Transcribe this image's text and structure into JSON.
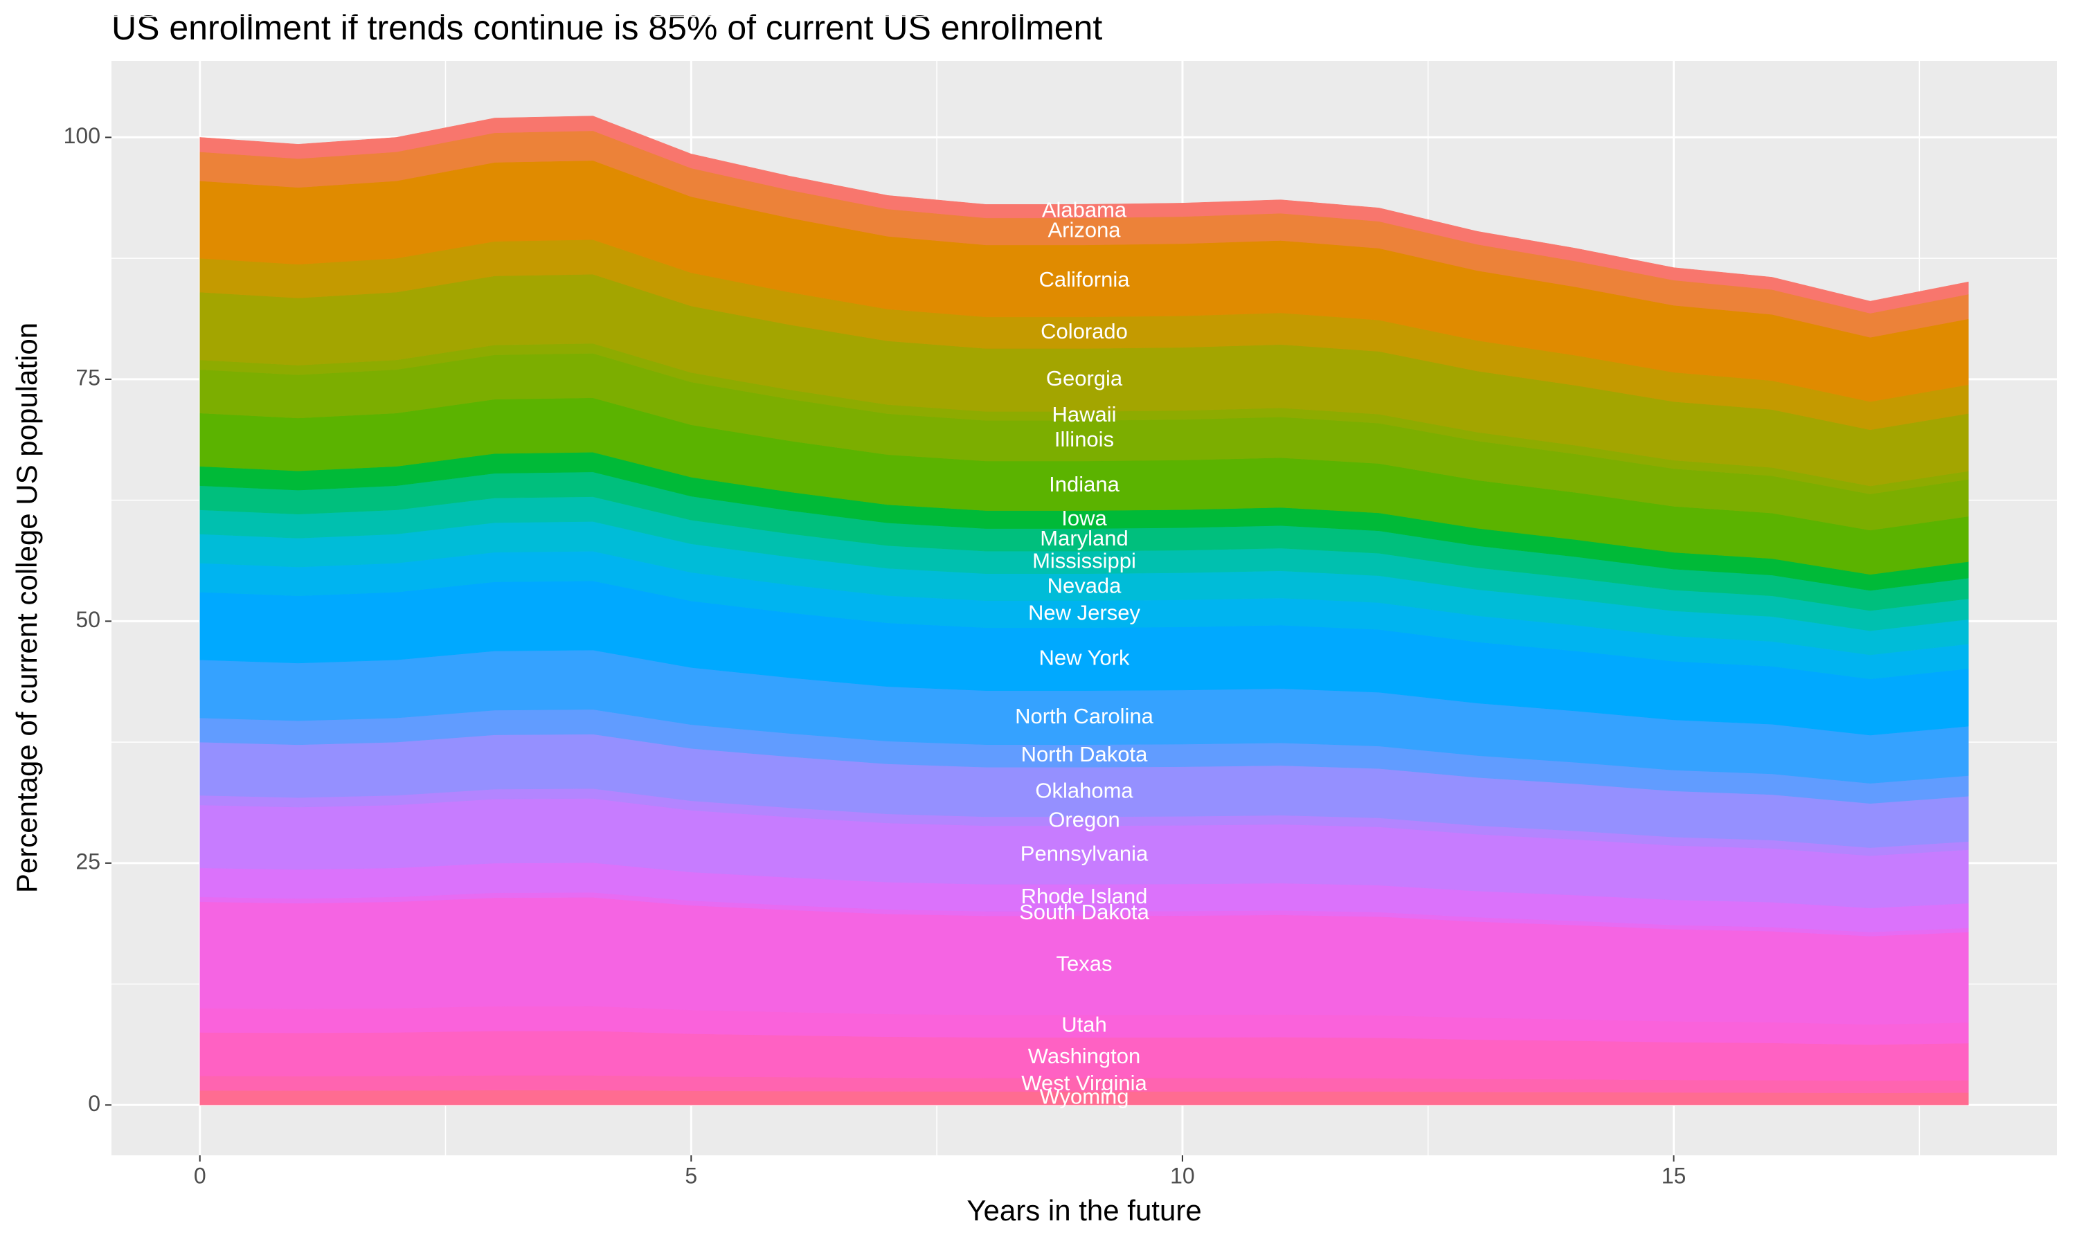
{
  "chart_data": {
    "type": "stacked-area",
    "title": "US enrollment if trends continue is 85% of current US enrollment",
    "x_label": "Years in the future",
    "y_label": "Percentage of current college US population",
    "x": [
      0,
      1,
      2,
      3,
      4,
      5,
      6,
      7,
      8,
      9,
      10,
      11,
      12,
      13,
      14,
      15,
      16,
      17,
      18
    ],
    "xlim": [
      -0.9,
      18.9
    ],
    "xticks": [
      0,
      5,
      10,
      15
    ],
    "ylim": [
      -5.2,
      107.9
    ],
    "yticks": [
      0,
      25,
      50,
      75,
      100
    ],
    "grid": true,
    "series": [
      {
        "name": "Alabama",
        "color": "#F8766D",
        "values": [
          1.5,
          1.49,
          1.5,
          1.53,
          1.53,
          1.47,
          1.44,
          1.41,
          1.4,
          1.4,
          1.4,
          1.4,
          1.39,
          1.35,
          1.33,
          1.3,
          1.28,
          1.25,
          1.28
        ]
      },
      {
        "name": "Arizona",
        "color": "#EC8239",
        "values": [
          3,
          2.98,
          3,
          3.06,
          3.07,
          2.95,
          2.88,
          2.82,
          2.79,
          2.79,
          2.8,
          2.81,
          2.78,
          2.71,
          2.66,
          2.6,
          2.57,
          2.49,
          2.55
        ]
      },
      {
        "name": "California",
        "color": "#E08B00",
        "values": [
          8,
          7.94,
          8,
          8.16,
          8.18,
          7.86,
          7.68,
          7.52,
          7.44,
          7.44,
          7.46,
          7.48,
          7.42,
          7.22,
          7.08,
          6.92,
          6.84,
          6.64,
          6.8
        ]
      },
      {
        "name": "Colorado",
        "color": "#C49A00",
        "values": [
          3.5,
          3.48,
          3.5,
          3.57,
          3.58,
          3.44,
          3.36,
          3.29,
          3.26,
          3.26,
          3.26,
          3.27,
          3.24,
          3.16,
          3.1,
          3.03,
          2.99,
          2.91,
          2.98
        ]
      },
      {
        "name": "Georgia",
        "color": "#A3A500",
        "values": [
          7,
          6.95,
          7,
          7.14,
          7.15,
          6.88,
          6.72,
          6.58,
          6.51,
          6.51,
          6.52,
          6.55,
          6.49,
          6.32,
          6.2,
          6.06,
          5.99,
          5.81,
          5.95
        ]
      },
      {
        "name": "Hawaii",
        "color": "#8EAB00",
        "values": [
          1,
          0.99,
          1,
          1.02,
          1.02,
          0.98,
          0.96,
          0.94,
          0.93,
          0.93,
          0.93,
          0.94,
          0.93,
          0.9,
          0.89,
          0.87,
          0.86,
          0.83,
          0.85
        ]
      },
      {
        "name": "Illinois",
        "color": "#7CAE00",
        "values": [
          4.5,
          4.47,
          4.5,
          4.59,
          4.6,
          4.42,
          4.32,
          4.23,
          4.19,
          4.19,
          4.19,
          4.21,
          4.17,
          4.06,
          3.98,
          3.89,
          3.85,
          3.74,
          3.83
        ]
      },
      {
        "name": "Indiana",
        "color": "#5BB300",
        "values": [
          5.5,
          5.46,
          5.5,
          5.61,
          5.62,
          5.41,
          5.28,
          5.17,
          5.12,
          5.12,
          5.13,
          5.14,
          5.1,
          4.97,
          4.87,
          4.76,
          4.7,
          4.57,
          4.68
        ]
      },
      {
        "name": "Iowa",
        "color": "#00BA38",
        "values": [
          2,
          1.99,
          2,
          2.04,
          2.04,
          1.97,
          1.92,
          1.88,
          1.86,
          1.86,
          1.86,
          1.87,
          1.85,
          1.81,
          1.77,
          1.73,
          1.71,
          1.66,
          1.7
        ]
      },
      {
        "name": "Maryland",
        "color": "#00BF7D",
        "values": [
          2.5,
          2.48,
          2.5,
          2.55,
          2.56,
          2.46,
          2.4,
          2.35,
          2.33,
          2.33,
          2.33,
          2.34,
          2.32,
          2.26,
          2.21,
          2.16,
          2.14,
          2.08,
          2.13
        ]
      },
      {
        "name": "Mississippi",
        "color": "#00C0AF",
        "values": [
          2.5,
          2.48,
          2.5,
          2.55,
          2.56,
          2.46,
          2.4,
          2.35,
          2.33,
          2.33,
          2.33,
          2.34,
          2.32,
          2.26,
          2.21,
          2.16,
          2.14,
          2.08,
          2.13
        ]
      },
      {
        "name": "Nevada",
        "color": "#00BCD8",
        "values": [
          3,
          2.98,
          3,
          3.06,
          3.07,
          2.95,
          2.88,
          2.82,
          2.79,
          2.79,
          2.8,
          2.81,
          2.78,
          2.71,
          2.66,
          2.6,
          2.57,
          2.49,
          2.55
        ]
      },
      {
        "name": "New Jersey",
        "color": "#00B4F0",
        "values": [
          3,
          2.98,
          3,
          3.06,
          3.07,
          2.95,
          2.88,
          2.82,
          2.79,
          2.79,
          2.8,
          2.81,
          2.78,
          2.71,
          2.66,
          2.6,
          2.57,
          2.49,
          2.55
        ]
      },
      {
        "name": "New York",
        "color": "#00A9FF",
        "values": [
          7,
          6.95,
          7,
          7.14,
          7.15,
          6.88,
          6.72,
          6.58,
          6.51,
          6.51,
          6.52,
          6.55,
          6.49,
          6.32,
          6.2,
          6.06,
          5.99,
          5.81,
          5.95
        ]
      },
      {
        "name": "North Carolina",
        "color": "#35A2FF",
        "values": [
          6,
          5.96,
          6,
          6.12,
          6.13,
          5.9,
          5.76,
          5.64,
          5.58,
          5.58,
          5.59,
          5.61,
          5.56,
          5.42,
          5.31,
          5.19,
          5.13,
          4.98,
          5.1
        ]
      },
      {
        "name": "North Dakota",
        "color": "#619CFF",
        "values": [
          2.5,
          2.48,
          2.5,
          2.55,
          2.56,
          2.46,
          2.4,
          2.35,
          2.33,
          2.33,
          2.33,
          2.34,
          2.32,
          2.26,
          2.21,
          2.16,
          2.14,
          2.08,
          2.13
        ]
      },
      {
        "name": "Oklahoma",
        "color": "#9590FF",
        "values": [
          5.5,
          5.46,
          5.5,
          5.61,
          5.62,
          5.41,
          5.28,
          5.17,
          5.12,
          5.12,
          5.13,
          5.14,
          5.1,
          4.97,
          4.87,
          4.76,
          4.7,
          4.57,
          4.68
        ]
      },
      {
        "name": "Oregon",
        "color": "#B385FF",
        "values": [
          1,
          0.99,
          1,
          1.02,
          1.02,
          0.98,
          0.96,
          0.94,
          0.93,
          0.93,
          0.93,
          0.94,
          0.93,
          0.9,
          0.89,
          0.87,
          0.86,
          0.83,
          0.85
        ]
      },
      {
        "name": "Pennsylvania",
        "color": "#C77CFF",
        "values": [
          6.5,
          6.45,
          6.5,
          6.63,
          6.64,
          6.39,
          6.24,
          6.11,
          6.05,
          6.05,
          6.06,
          6.08,
          6.03,
          5.87,
          5.75,
          5.62,
          5.56,
          5.4,
          5.53
        ]
      },
      {
        "name": "Rhode Island",
        "color": "#DB72FB",
        "values": [
          3,
          2.98,
          3,
          3.06,
          3.07,
          2.95,
          2.88,
          2.82,
          2.79,
          2.79,
          2.8,
          2.81,
          2.78,
          2.71,
          2.66,
          2.6,
          2.57,
          2.49,
          2.55
        ]
      },
      {
        "name": "South Dakota",
        "color": "#E76BF3",
        "values": [
          0.5,
          0.5,
          0.5,
          0.51,
          0.51,
          0.49,
          0.48,
          0.47,
          0.47,
          0.47,
          0.47,
          0.47,
          0.46,
          0.45,
          0.44,
          0.43,
          0.43,
          0.42,
          0.43
        ]
      },
      {
        "name": "Texas",
        "color": "#F564E3",
        "values": [
          11,
          10.92,
          11,
          11.22,
          11.24,
          10.81,
          10.56,
          10.34,
          10.23,
          10.23,
          10.25,
          10.29,
          10.2,
          9.93,
          9.74,
          9.52,
          9.41,
          9.13,
          9.35
        ]
      },
      {
        "name": "Utah",
        "color": "#FA62DB",
        "values": [
          2.5,
          2.48,
          2.5,
          2.55,
          2.56,
          2.46,
          2.4,
          2.35,
          2.33,
          2.33,
          2.33,
          2.34,
          2.32,
          2.26,
          2.21,
          2.16,
          2.14,
          2.08,
          2.13
        ]
      },
      {
        "name": "Washington",
        "color": "#FF61C3",
        "values": [
          4.5,
          4.47,
          4.5,
          4.59,
          4.6,
          4.42,
          4.32,
          4.23,
          4.19,
          4.19,
          4.19,
          4.21,
          4.17,
          4.06,
          3.98,
          3.89,
          3.85,
          3.74,
          3.83
        ]
      },
      {
        "name": "West Virginia",
        "color": "#FF64B0",
        "values": [
          1.5,
          1.49,
          1.5,
          1.53,
          1.53,
          1.47,
          1.44,
          1.41,
          1.4,
          1.4,
          1.4,
          1.4,
          1.39,
          1.35,
          1.33,
          1.3,
          1.28,
          1.25,
          1.28
        ]
      },
      {
        "name": "Wyoming",
        "color": "#FF6C91",
        "values": [
          1.5,
          1.49,
          1.5,
          1.53,
          1.53,
          1.47,
          1.44,
          1.41,
          1.4,
          1.4,
          1.4,
          1.4,
          1.39,
          1.35,
          1.33,
          1.3,
          1.28,
          1.25,
          1.28
        ]
      }
    ]
  }
}
